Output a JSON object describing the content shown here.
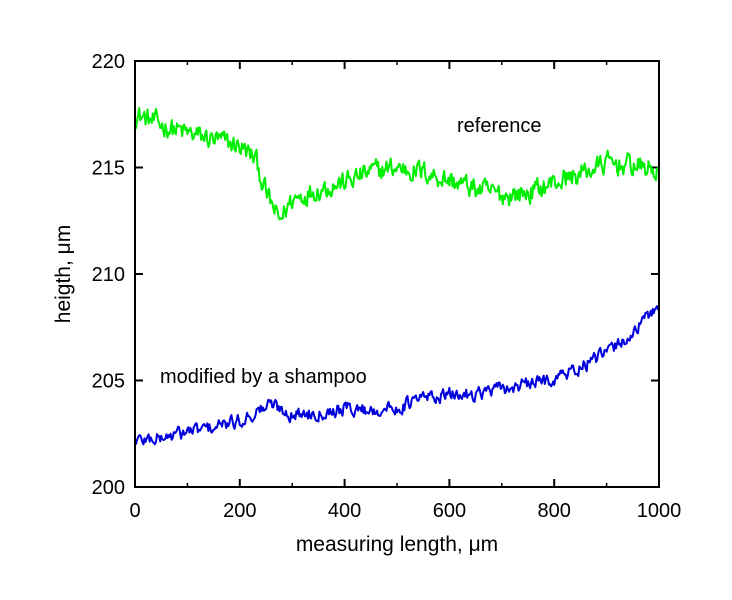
{
  "chart_data": {
    "type": "line",
    "xlabel": "measuring length, μm",
    "ylabel": "heigth, μm",
    "xlim": [
      0,
      1000
    ],
    "ylim": [
      200,
      220
    ],
    "x_ticks": [
      "0",
      "200",
      "400",
      "600",
      "800",
      "1000"
    ],
    "y_ticks": [
      "200",
      "205",
      "210",
      "215",
      "220"
    ],
    "grid": false,
    "legend": "none",
    "annotations": [
      {
        "text": "reference",
        "series": 0
      },
      {
        "text": "modified by a shampoo",
        "series": 1
      }
    ],
    "series": [
      {
        "color": "#00ee00",
        "x": [
          0,
          50,
          100,
          150,
          200,
          230,
          250,
          275,
          300,
          350,
          400,
          450,
          500,
          550,
          600,
          650,
          700,
          750,
          800,
          850,
          900,
          950,
          1000
        ],
        "y": [
          217.5,
          217.0,
          216.6,
          216.3,
          216.0,
          215.4,
          213.8,
          212.5,
          213.5,
          214.0,
          214.3,
          214.8,
          215.0,
          214.8,
          214.4,
          214.0,
          213.7,
          213.8,
          214.3,
          214.7,
          215.2,
          215.1,
          214.8
        ]
      },
      {
        "color": "#0000dd",
        "x": [
          0,
          50,
          100,
          150,
          200,
          230,
          260,
          300,
          350,
          400,
          450,
          500,
          550,
          600,
          650,
          700,
          750,
          800,
          850,
          900,
          950,
          1000
        ],
        "y": [
          202.2,
          202.3,
          202.6,
          202.8,
          203.1,
          203.5,
          203.9,
          203.4,
          203.5,
          203.7,
          203.6,
          203.7,
          204.2,
          204.3,
          204.4,
          204.6,
          204.8,
          205.1,
          205.6,
          206.3,
          207.2,
          208.6
        ]
      }
    ]
  }
}
